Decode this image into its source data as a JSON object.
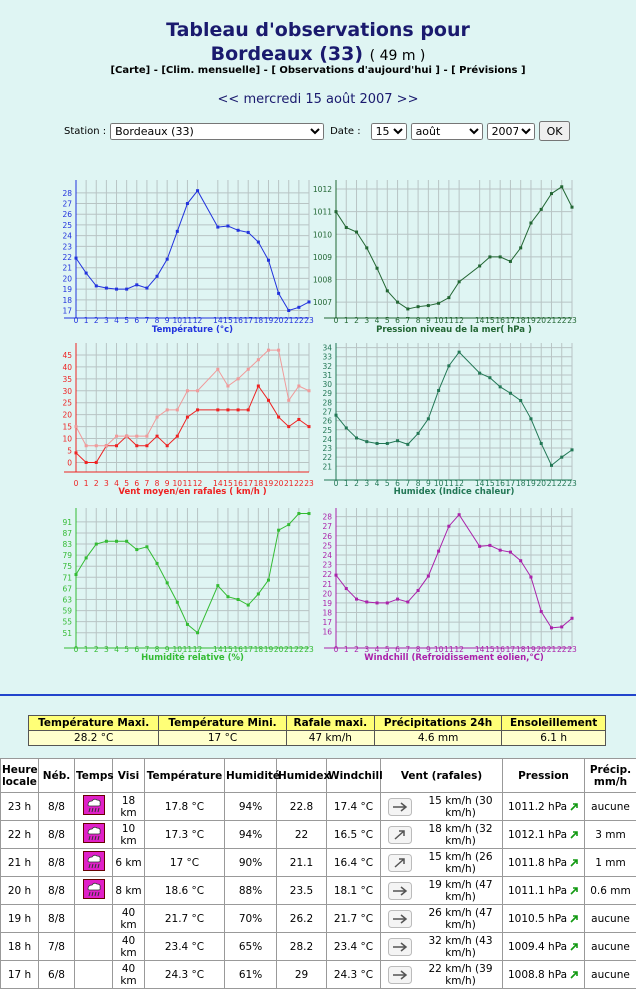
{
  "header": {
    "title": "Tableau d'observations pour",
    "station": "Bordeaux (33)",
    "altitude": "( 49 m )",
    "links": [
      "[Carte]",
      "[Clim. mensuelle]",
      "[ Observations d'aujourd'hui ]",
      "[ Prévisions ]"
    ],
    "separator": "-",
    "prev": "<<",
    "date": "mercredi 15 août 2007",
    "next": ">>"
  },
  "form": {
    "station_label": "Station :",
    "station": "Bordeaux (33)",
    "date_label": "Date :",
    "day": "15",
    "month": "août",
    "year": "2007",
    "button": "OK"
  },
  "chart_data": [
    {
      "type": "line",
      "xlabel": "Température (°c)",
      "x": [
        0,
        1,
        2,
        3,
        4,
        5,
        6,
        7,
        8,
        9,
        10,
        11,
        12,
        14,
        15,
        16,
        17,
        18,
        19,
        20,
        21,
        22,
        23
      ],
      "xticks": [
        0,
        1,
        2,
        3,
        4,
        5,
        6,
        7,
        8,
        9,
        10,
        11,
        12,
        14,
        15,
        16,
        17,
        18,
        19,
        20,
        21,
        22,
        23
      ],
      "xlim": [
        0,
        23
      ],
      "ylim": [
        16.3,
        29.2
      ],
      "yticks": [
        17,
        18,
        19,
        20,
        21,
        22,
        23,
        24,
        25,
        26,
        27,
        28
      ],
      "grid": true,
      "series": [
        {
          "color": "#2233dd",
          "values": [
            21.9,
            20.5,
            19.3,
            19.1,
            19.0,
            19.0,
            19.4,
            19.1,
            20.2,
            21.8,
            24.4,
            27.0,
            28.2,
            24.8,
            24.9,
            24.5,
            24.3,
            23.4,
            21.7,
            18.6,
            17.0,
            17.3,
            17.8
          ]
        }
      ]
    },
    {
      "type": "line",
      "xlabel": "Pression niveau de la mer( hPa )",
      "x": [
        0,
        1,
        2,
        3,
        4,
        5,
        6,
        7,
        8,
        9,
        10,
        11,
        12,
        14,
        15,
        16,
        17,
        18,
        19,
        20,
        21,
        22,
        23
      ],
      "xticks": [
        0,
        1,
        2,
        3,
        4,
        5,
        6,
        7,
        8,
        9,
        10,
        11,
        12,
        14,
        15,
        16,
        17,
        18,
        19,
        20,
        21,
        22,
        23
      ],
      "xlim": [
        0,
        23
      ],
      "ylim": [
        1006.3,
        1012.4
      ],
      "yticks": [
        1007,
        1008,
        1009,
        1010,
        1011,
        1012
      ],
      "grid": true,
      "series": [
        {
          "color": "#226633",
          "values": [
            1011.0,
            1010.3,
            1010.1,
            1009.4,
            1008.5,
            1007.5,
            1007.0,
            1006.7,
            1006.8,
            1006.85,
            1006.95,
            1007.2,
            1007.9,
            1008.6,
            1009.0,
            1009.0,
            1008.8,
            1009.4,
            1010.5,
            1011.1,
            1011.8,
            1012.1,
            1011.2
          ]
        }
      ]
    },
    {
      "type": "line",
      "xlabel": "Vent moyen/en rafales ( km/h )",
      "x": [
        0,
        1,
        2,
        3,
        4,
        5,
        6,
        7,
        8,
        9,
        10,
        11,
        12,
        14,
        15,
        16,
        17,
        18,
        19,
        20,
        21,
        22,
        23
      ],
      "xticks": [
        0,
        1,
        2,
        3,
        4,
        5,
        6,
        7,
        8,
        9,
        10,
        11,
        12,
        14,
        15,
        16,
        17,
        18,
        19,
        20,
        21,
        22,
        23
      ],
      "xlim": [
        0,
        23
      ],
      "ylim": [
        -4,
        50
      ],
      "yticks": [
        0,
        5,
        10,
        15,
        20,
        25,
        30,
        35,
        40,
        45
      ],
      "grid": true,
      "series": [
        {
          "color": "#ee2222",
          "values": [
            4,
            0,
            0,
            7,
            7,
            11,
            7,
            7,
            11,
            7,
            11,
            19,
            22,
            22,
            22,
            22,
            22,
            32,
            26,
            19,
            15,
            18,
            15
          ]
        },
        {
          "color": "#f09a9a",
          "values": [
            15,
            7,
            7,
            7,
            11,
            11,
            11,
            11,
            19,
            22,
            22,
            30,
            30,
            39,
            32,
            35,
            39,
            43,
            47,
            47,
            26,
            32,
            30
          ]
        }
      ]
    },
    {
      "type": "line",
      "xlabel": "Humidex (Indice chaleur)",
      "x": [
        0,
        1,
        2,
        3,
        4,
        5,
        6,
        7,
        8,
        9,
        10,
        11,
        12,
        14,
        15,
        16,
        17,
        18,
        19,
        20,
        21,
        22,
        23
      ],
      "xticks": [
        0,
        1,
        2,
        3,
        4,
        5,
        6,
        7,
        8,
        9,
        10,
        11,
        12,
        14,
        15,
        16,
        17,
        18,
        19,
        20,
        21,
        22,
        23
      ],
      "xlim": [
        0,
        23
      ],
      "ylim": [
        19.5,
        34.5
      ],
      "yticks": [
        21,
        22,
        23,
        24,
        25,
        26,
        27,
        28,
        29,
        30,
        31,
        32,
        33,
        34
      ],
      "grid": true,
      "series": [
        {
          "color": "#227755",
          "values": [
            26.6,
            25.2,
            24.1,
            23.7,
            23.5,
            23.5,
            23.8,
            23.4,
            24.6,
            26.2,
            29.3,
            32,
            33.5,
            31.2,
            30.7,
            29.7,
            29,
            28.2,
            26.2,
            23.5,
            21.1,
            22,
            22.8
          ]
        }
      ]
    },
    {
      "type": "line",
      "xlabel": "Humidité relative (%)",
      "x": [
        0,
        1,
        2,
        3,
        4,
        5,
        6,
        7,
        8,
        9,
        10,
        11,
        12,
        14,
        15,
        16,
        17,
        18,
        19,
        20,
        21,
        22,
        23
      ],
      "xticks": [
        0,
        1,
        2,
        3,
        4,
        5,
        6,
        7,
        8,
        9,
        10,
        11,
        12,
        14,
        15,
        16,
        17,
        18,
        19,
        20,
        21,
        22,
        23
      ],
      "xlim": [
        0,
        23
      ],
      "ylim": [
        45.5,
        96
      ],
      "yticks": [
        51,
        55,
        59,
        63,
        67,
        71,
        75,
        79,
        83,
        87,
        91
      ],
      "grid": true,
      "series": [
        {
          "color": "#33bb33",
          "values": [
            72,
            78,
            83,
            84,
            84,
            84,
            81,
            82,
            76,
            69,
            62,
            54,
            51,
            68,
            64,
            63,
            61,
            65,
            70,
            88,
            90,
            94,
            94
          ]
        }
      ]
    },
    {
      "type": "line",
      "xlabel": "Windchill (Refroidissement éolien,°C)",
      "x": [
        0,
        1,
        2,
        3,
        4,
        5,
        6,
        7,
        8,
        9,
        10,
        11,
        12,
        14,
        15,
        16,
        17,
        18,
        19,
        20,
        21,
        22,
        23
      ],
      "xticks": [
        0,
        1,
        2,
        3,
        4,
        5,
        6,
        7,
        8,
        9,
        10,
        11,
        12,
        14,
        15,
        16,
        17,
        18,
        19,
        20,
        21,
        22,
        23
      ],
      "xlim": [
        0,
        23
      ],
      "ylim": [
        14.3,
        28.9
      ],
      "yticks": [
        16,
        17,
        18,
        19,
        20,
        21,
        22,
        23,
        24,
        25,
        26,
        27,
        28
      ],
      "grid": true,
      "series": [
        {
          "color": "#aa22aa",
          "values": [
            21.9,
            20.5,
            19.4,
            19.1,
            19,
            19,
            19.4,
            19.1,
            20.3,
            21.8,
            24.4,
            27,
            28.2,
            24.9,
            25,
            24.5,
            24.3,
            23.4,
            21.7,
            18.1,
            16.4,
            16.5,
            17.4
          ]
        }
      ]
    }
  ],
  "summary": {
    "headers": [
      "Température Maxi.",
      "Température Mini.",
      "Rafale maxi.",
      "Précipitations 24h",
      "Ensoleillement"
    ],
    "values": [
      "28.2 °C",
      "17 °C",
      "47 km/h",
      "4.6 mm",
      "6.1 h"
    ]
  },
  "observations": {
    "headers": [
      "Heure locale",
      "Néb.",
      "Temps",
      "Visi",
      "Température",
      "Humidité",
      "Humidex",
      "Windchill",
      "Vent (rafales)",
      "Pression",
      "Précip. mm/h"
    ],
    "rows": [
      [
        "23 h",
        "8/8",
        "18 km",
        "17.8 °C",
        "94%",
        "22.8",
        "17.4 °C",
        "15 km/h (30 km/h)",
        "1011.2 hPa",
        "aucune"
      ],
      [
        "22 h",
        "8/8",
        "10 km",
        "17.3 °C",
        "94%",
        "22",
        "16.5 °C",
        "18 km/h (32 km/h)",
        "1012.1 hPa",
        "3 mm"
      ],
      [
        "21 h",
        "8/8",
        "6 km",
        "17 °C",
        "90%",
        "21.1",
        "16.4 °C",
        "15 km/h (26 km/h)",
        "1011.8 hPa",
        "1 mm"
      ],
      [
        "20 h",
        "8/8",
        "8 km",
        "18.6 °C",
        "88%",
        "23.5",
        "18.1 °C",
        "19 km/h (47 km/h)",
        "1011.1 hPa",
        "0.6 mm"
      ],
      [
        "19 h",
        "8/8",
        "40 km",
        "21.7 °C",
        "70%",
        "26.2",
        "21.7 °C",
        "26 km/h (47 km/h)",
        "1010.5 hPa",
        "aucune"
      ],
      [
        "18 h",
        "7/8",
        "40 km",
        "23.4 °C",
        "65%",
        "28.2",
        "23.4 °C",
        "32 km/h (43 km/h)",
        "1009.4 hPa",
        "aucune"
      ],
      [
        "17 h",
        "6/8",
        "40 km",
        "24.3 °C",
        "61%",
        "29",
        "24.3 °C",
        "22 km/h (39 km/h)",
        "1008.8 hPa",
        "aucune"
      ]
    ]
  }
}
